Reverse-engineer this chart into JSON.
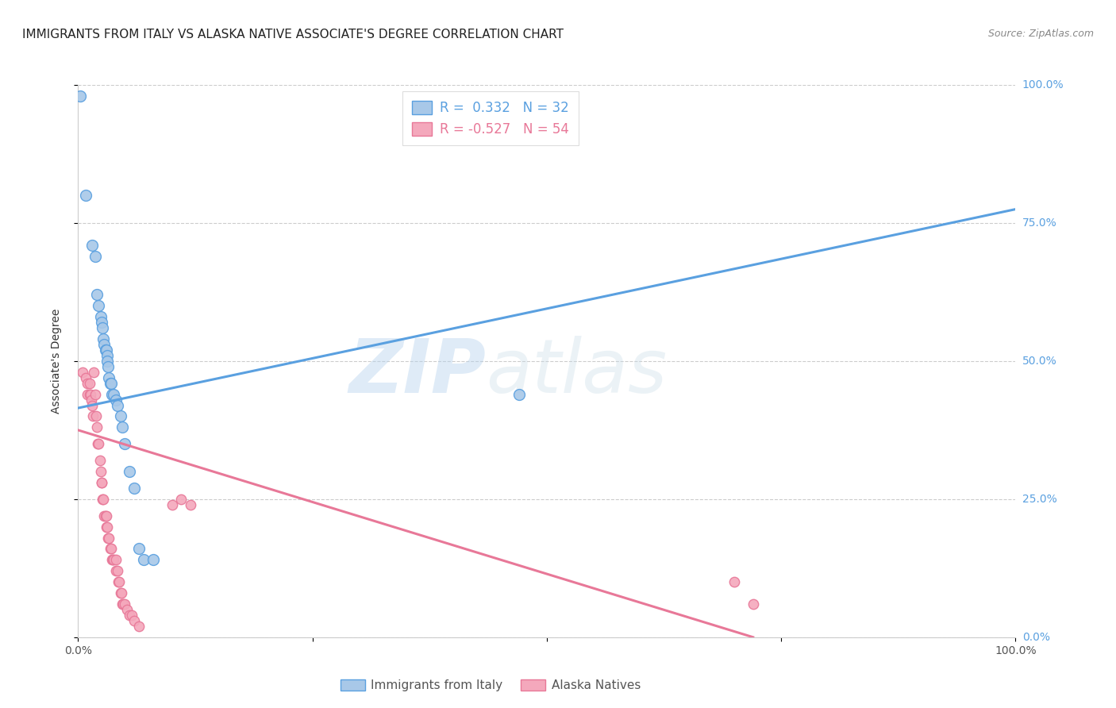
{
  "title": "IMMIGRANTS FROM ITALY VS ALASKA NATIVE ASSOCIATE'S DEGREE CORRELATION CHART",
  "source": "Source: ZipAtlas.com",
  "ylabel": "Associate's Degree",
  "yticks": [
    "0.0%",
    "25.0%",
    "50.0%",
    "75.0%",
    "100.0%"
  ],
  "ytick_vals": [
    0.0,
    0.25,
    0.5,
    0.75,
    1.0
  ],
  "xlim": [
    0.0,
    1.0
  ],
  "ylim": [
    0.0,
    1.0
  ],
  "blue_R": 0.332,
  "blue_N": 32,
  "pink_R": -0.527,
  "pink_N": 54,
  "legend_label_blue": "Immigrants from Italy",
  "legend_label_pink": "Alaska Natives",
  "blue_color": "#a8c8e8",
  "pink_color": "#f4a8bc",
  "blue_line_color": "#5aa0e0",
  "pink_line_color": "#e87898",
  "watermark_zip": "ZIP",
  "watermark_atlas": "atlas",
  "background_color": "#ffffff",
  "blue_points": [
    [
      0.002,
      0.98
    ],
    [
      0.008,
      0.8
    ],
    [
      0.015,
      0.71
    ],
    [
      0.018,
      0.69
    ],
    [
      0.02,
      0.62
    ],
    [
      0.022,
      0.6
    ],
    [
      0.024,
      0.58
    ],
    [
      0.025,
      0.57
    ],
    [
      0.026,
      0.56
    ],
    [
      0.027,
      0.54
    ],
    [
      0.028,
      0.53
    ],
    [
      0.029,
      0.52
    ],
    [
      0.03,
      0.52
    ],
    [
      0.031,
      0.51
    ],
    [
      0.031,
      0.5
    ],
    [
      0.032,
      0.49
    ],
    [
      0.033,
      0.47
    ],
    [
      0.034,
      0.46
    ],
    [
      0.035,
      0.46
    ],
    [
      0.036,
      0.44
    ],
    [
      0.038,
      0.44
    ],
    [
      0.04,
      0.43
    ],
    [
      0.042,
      0.42
    ],
    [
      0.045,
      0.4
    ],
    [
      0.047,
      0.38
    ],
    [
      0.05,
      0.35
    ],
    [
      0.055,
      0.3
    ],
    [
      0.06,
      0.27
    ],
    [
      0.065,
      0.16
    ],
    [
      0.07,
      0.14
    ],
    [
      0.08,
      0.14
    ],
    [
      0.47,
      0.44
    ]
  ],
  "pink_points": [
    [
      0.005,
      0.48
    ],
    [
      0.008,
      0.47
    ],
    [
      0.01,
      0.46
    ],
    [
      0.01,
      0.44
    ],
    [
      0.012,
      0.46
    ],
    [
      0.012,
      0.44
    ],
    [
      0.013,
      0.44
    ],
    [
      0.014,
      0.43
    ],
    [
      0.015,
      0.42
    ],
    [
      0.016,
      0.4
    ],
    [
      0.017,
      0.48
    ],
    [
      0.018,
      0.44
    ],
    [
      0.019,
      0.4
    ],
    [
      0.02,
      0.38
    ],
    [
      0.021,
      0.35
    ],
    [
      0.022,
      0.35
    ],
    [
      0.023,
      0.32
    ],
    [
      0.024,
      0.3
    ],
    [
      0.025,
      0.28
    ],
    [
      0.025,
      0.28
    ],
    [
      0.026,
      0.25
    ],
    [
      0.027,
      0.25
    ],
    [
      0.028,
      0.22
    ],
    [
      0.029,
      0.22
    ],
    [
      0.03,
      0.22
    ],
    [
      0.03,
      0.2
    ],
    [
      0.031,
      0.2
    ],
    [
      0.032,
      0.18
    ],
    [
      0.033,
      0.18
    ],
    [
      0.034,
      0.16
    ],
    [
      0.035,
      0.16
    ],
    [
      0.036,
      0.14
    ],
    [
      0.037,
      0.14
    ],
    [
      0.038,
      0.14
    ],
    [
      0.04,
      0.14
    ],
    [
      0.04,
      0.12
    ],
    [
      0.042,
      0.12
    ],
    [
      0.043,
      0.1
    ],
    [
      0.044,
      0.1
    ],
    [
      0.045,
      0.08
    ],
    [
      0.046,
      0.08
    ],
    [
      0.047,
      0.06
    ],
    [
      0.048,
      0.06
    ],
    [
      0.05,
      0.06
    ],
    [
      0.052,
      0.05
    ],
    [
      0.055,
      0.04
    ],
    [
      0.057,
      0.04
    ],
    [
      0.06,
      0.03
    ],
    [
      0.065,
      0.02
    ],
    [
      0.1,
      0.24
    ],
    [
      0.11,
      0.25
    ],
    [
      0.12,
      0.24
    ],
    [
      0.7,
      0.1
    ],
    [
      0.72,
      0.06
    ]
  ],
  "blue_line_x": [
    0.0,
    1.0
  ],
  "blue_line_y": [
    0.415,
    0.775
  ],
  "pink_line_x": [
    0.0,
    0.72
  ],
  "pink_line_y": [
    0.375,
    0.0
  ],
  "title_fontsize": 11,
  "axis_label_fontsize": 10,
  "tick_fontsize": 10,
  "source_fontsize": 9,
  "dot_size_blue": 100,
  "dot_size_pink": 80
}
